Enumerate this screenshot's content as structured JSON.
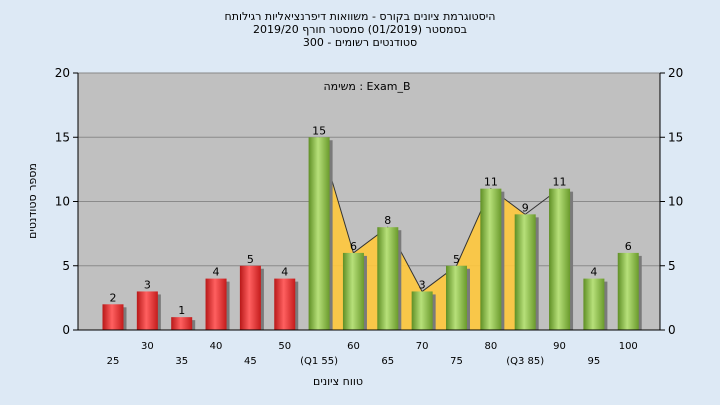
{
  "chart_data": {
    "type": "bar",
    "title_lines": [
      "היסטוגרמת ציונים בקורס - משוואות דיפרנציאליות רגילותח",
      "בסמסטר  (01/2019)  סמסטר חורף 2019/20",
      "סטודנטים רשומים - 300"
    ],
    "annotation": "משימה : Exam_B",
    "xlabel": "טווח ציונים",
    "ylabel": "מספר סטודנטים",
    "ylim": [
      0,
      20
    ],
    "yticks": [
      "0",
      "5",
      "10",
      "15",
      "20"
    ],
    "categories": [
      "25",
      "30",
      "35",
      "40",
      "45",
      "50",
      "(Q1 55)",
      "60",
      "65",
      "70",
      "75",
      "80",
      "(Q3 85)",
      "90",
      "95",
      "100"
    ],
    "values": [
      2,
      3,
      1,
      4,
      5,
      4,
      15,
      6,
      8,
      3,
      5,
      11,
      9,
      11,
      4,
      6
    ],
    "data_labels": [
      "2",
      "3",
      "1",
      "4",
      "5",
      "4",
      "15",
      "6",
      "8",
      "3",
      "5",
      "11",
      "9",
      "11",
      "4",
      "6"
    ],
    "bar_colors": [
      "#e83a3a",
      "#e83a3a",
      "#e83a3a",
      "#e83a3a",
      "#e83a3a",
      "#e83a3a",
      "#8cc04a",
      "#8cc04a",
      "#8cc04a",
      "#8cc04a",
      "#8cc04a",
      "#8cc04a",
      "#8cc04a",
      "#8cc04a",
      "#8cc04a",
      "#8cc04a"
    ],
    "area_band": {
      "color": "#ffc83c",
      "from_category": "(Q1 55)",
      "to_category": "(Q3 85)"
    },
    "grid": true,
    "plot_background": "#c0c0c0"
  }
}
